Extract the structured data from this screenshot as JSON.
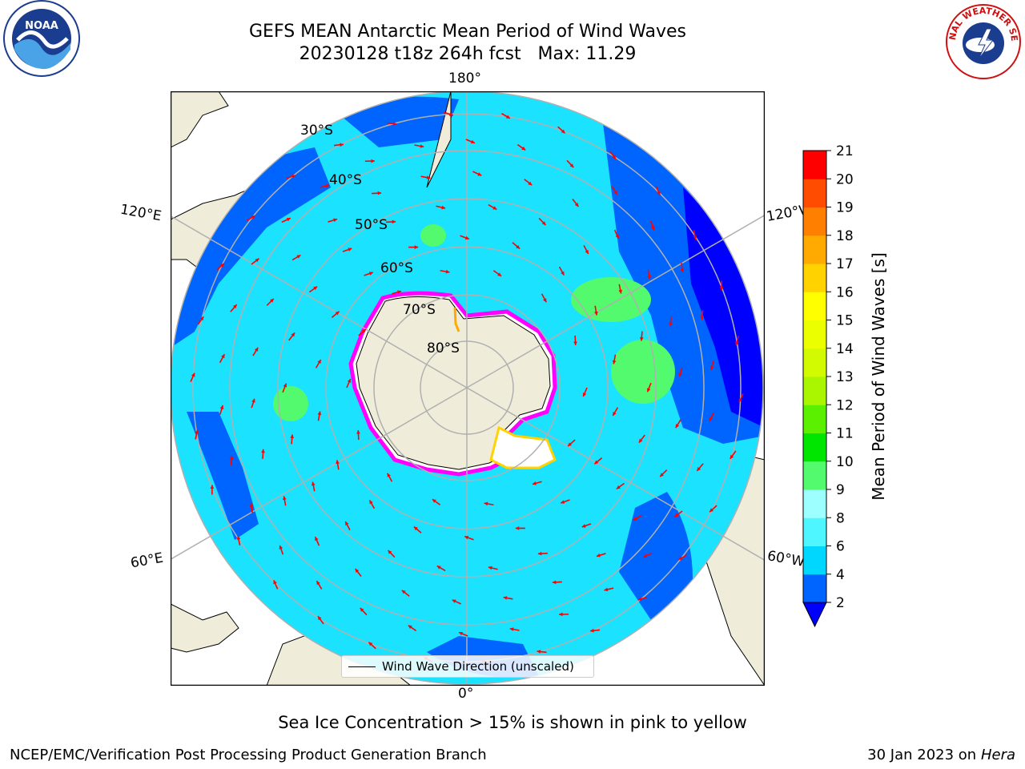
{
  "title": {
    "line1": "GEFS MEAN Antarctic Mean Period of Wind Waves",
    "line2": "20230128 t18z 264h fcst   Max: 11.29"
  },
  "logos": {
    "left": {
      "icon": "noaa-logo-icon",
      "text": "NOAA"
    },
    "right": {
      "icon": "nws-logo-icon",
      "text": "NATIONAL WEATHER SERVICE"
    }
  },
  "map": {
    "longitude_labels": {
      "top": "180°",
      "bottom": "0°",
      "upper_left": "120°E",
      "upper_right": "120°W",
      "lower_left": "60°E",
      "lower_right": "60°W"
    },
    "latitude_labels": [
      "30°S",
      "40°S",
      "50°S",
      "60°S",
      "70°S",
      "80°S"
    ],
    "colors": {
      "land": "#efedda",
      "ocean_outside": "#ffffff",
      "grid": "#b0b0b0",
      "arrow": "#ff0000"
    }
  },
  "colorbar": {
    "label": "Mean Period of Wind Waves [s]",
    "ticks": [
      "2",
      "4",
      "6",
      "8",
      "9",
      "10",
      "11",
      "12",
      "13",
      "14",
      "15",
      "16",
      "17",
      "18",
      "19",
      "20",
      "21"
    ],
    "colors": [
      "#0064ff",
      "#00d7ff",
      "#4ef6ff",
      "#9dffff",
      "#53fa6e",
      "#00e600",
      "#5af000",
      "#aaf500",
      "#d2fa00",
      "#ebff00",
      "#ffff00",
      "#ffd200",
      "#ffaa00",
      "#ff8000",
      "#ff4c00",
      "#ff0000"
    ],
    "under_color": "#0000ff"
  },
  "legend": {
    "label": "Wind Wave Direction (unscaled)"
  },
  "note": "Sea Ice Concentration > 15% is shown in pink to yellow",
  "footer": {
    "left": "NCEP/EMC/Verification Post Processing Product Generation Branch",
    "right_date": "30 Jan 2023 on ",
    "right_system": "Hera"
  }
}
